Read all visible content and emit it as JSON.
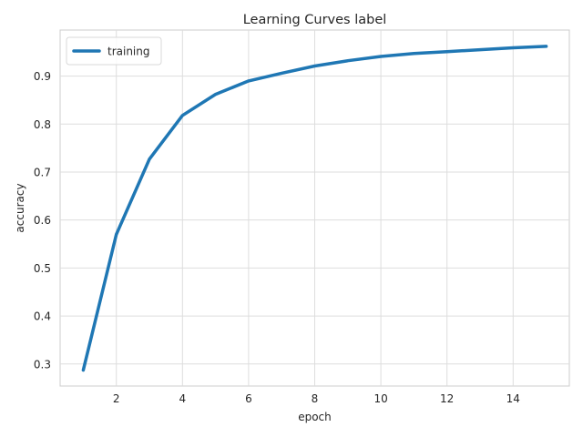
{
  "chart_data": {
    "type": "line",
    "title": "Learning Curves label",
    "xlabel": "epoch",
    "ylabel": "accuracy",
    "xlim": [
      0.3,
      15.7
    ],
    "ylim": [
      0.254,
      0.996
    ],
    "xticks": [
      2,
      4,
      6,
      8,
      10,
      12,
      14
    ],
    "yticks": [
      0.3,
      0.4,
      0.5,
      0.6,
      0.7,
      0.8,
      0.9
    ],
    "grid": true,
    "legend_position": "top-left",
    "series": [
      {
        "name": "training",
        "color": "#1f77b4",
        "x": [
          1,
          2,
          3,
          4,
          5,
          6,
          7,
          8,
          9,
          10,
          11,
          12,
          13,
          14,
          15
        ],
        "y": [
          0.287,
          0.57,
          0.727,
          0.818,
          0.862,
          0.89,
          0.906,
          0.921,
          0.932,
          0.941,
          0.947,
          0.951,
          0.955,
          0.959,
          0.962
        ]
      }
    ]
  }
}
